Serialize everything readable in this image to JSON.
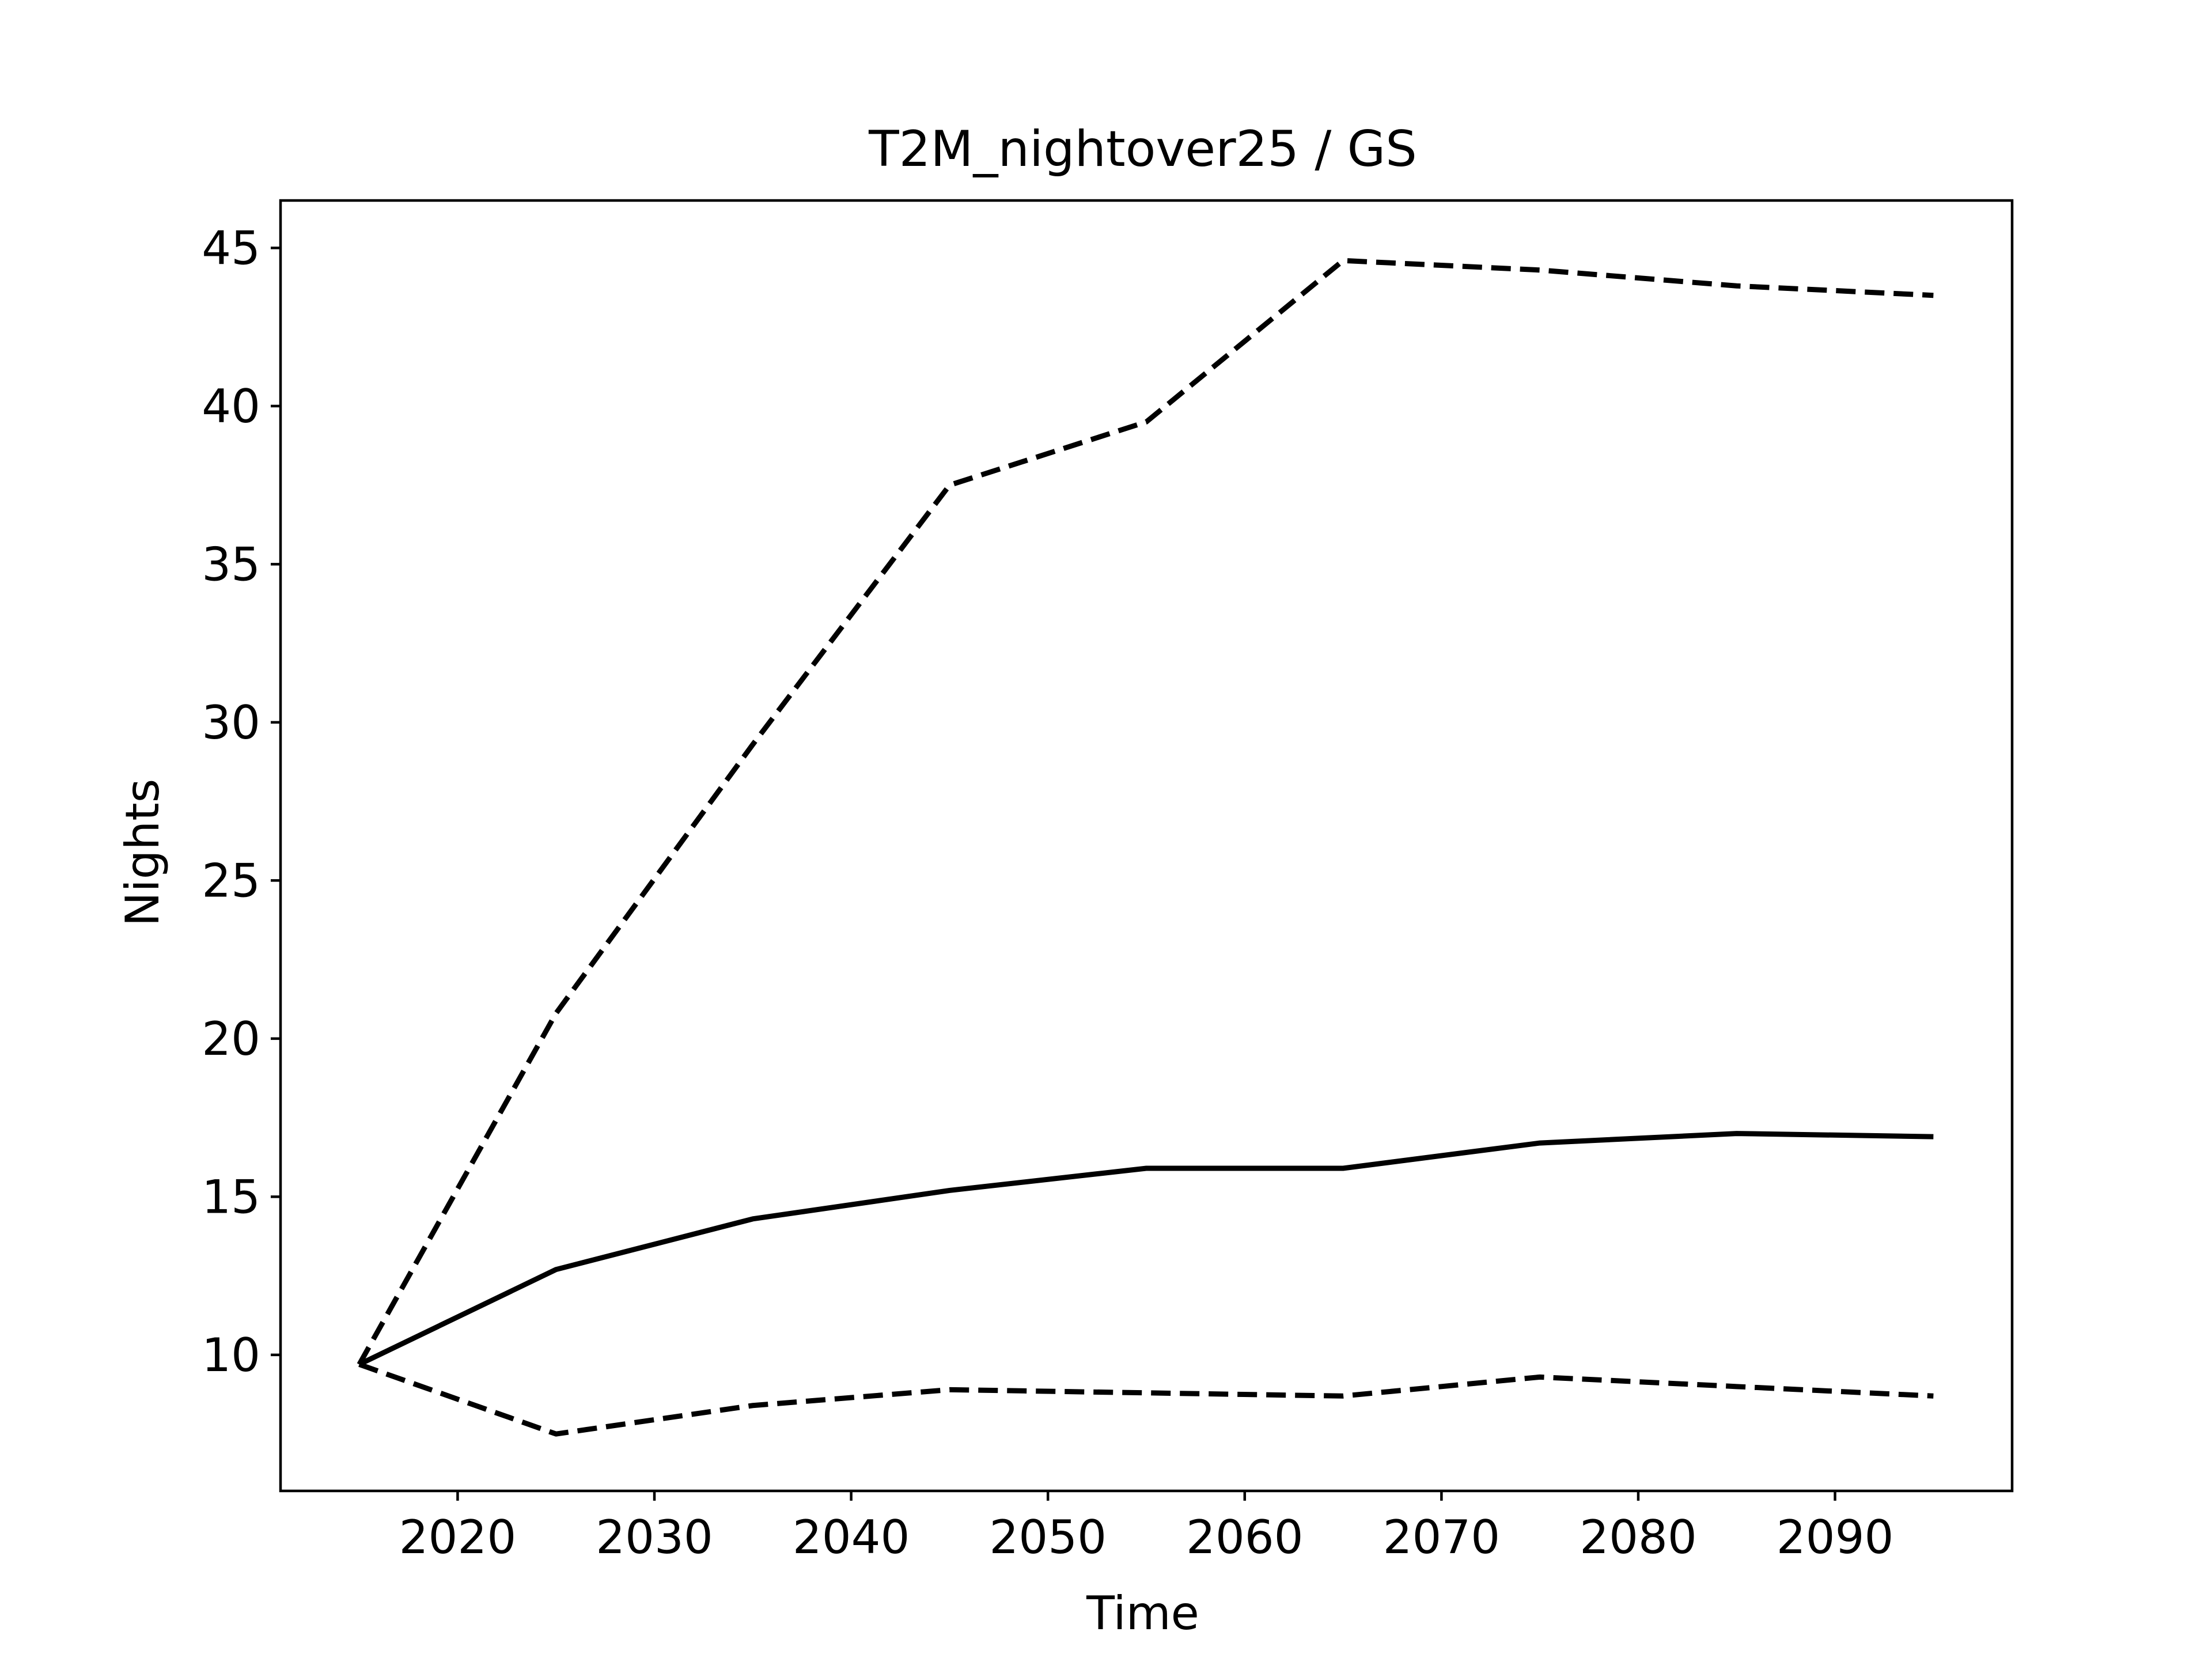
{
  "chart_data": {
    "type": "line",
    "title": "T2M_nightover25 / GS",
    "xlabel": "Time",
    "ylabel": "Nights",
    "xlim": [
      2011,
      2099
    ],
    "ylim": [
      5.7,
      46.5
    ],
    "xticks": [
      2020,
      2030,
      2040,
      2050,
      2060,
      2070,
      2080,
      2090
    ],
    "yticks": [
      10,
      15,
      20,
      25,
      30,
      35,
      40,
      45
    ],
    "grid": false,
    "legend": "none",
    "line_color": "#000000",
    "x": [
      2015,
      2025,
      2035,
      2045,
      2055,
      2065,
      2075,
      2085,
      2095
    ],
    "series": [
      {
        "style": "dashed",
        "values": [
          9.7,
          20.8,
          29.3,
          37.5,
          39.5,
          44.6,
          44.3,
          43.8,
          43.5
        ]
      },
      {
        "style": "solid",
        "values": [
          9.7,
          12.7,
          14.3,
          15.2,
          15.9,
          15.9,
          16.7,
          17.0,
          16.9
        ]
      },
      {
        "style": "dashed",
        "values": [
          9.7,
          7.5,
          8.4,
          8.9,
          8.8,
          8.7,
          9.3,
          9.0,
          8.7
        ]
      }
    ]
  }
}
